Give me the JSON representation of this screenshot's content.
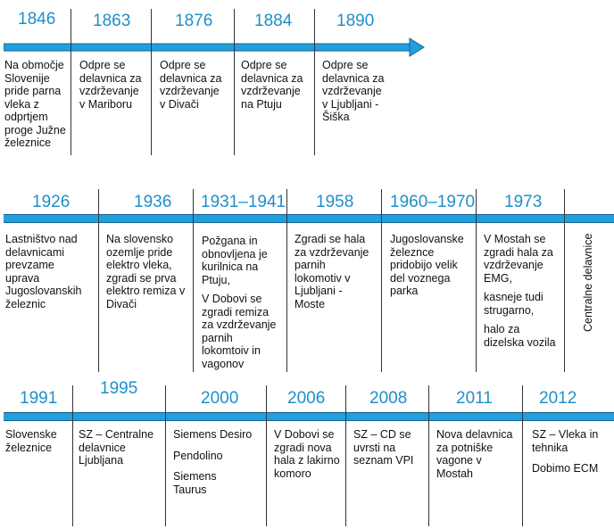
{
  "rows": [
    {
      "events": [
        {
          "year": "1846",
          "lines": [
            "Na območje",
            "Slovenije",
            "pride parna",
            "vleka z",
            "odprtjem",
            "proge Južne",
            "železnice"
          ]
        },
        {
          "year": "1863",
          "lines": [
            "Odpre se",
            "delavnica za",
            "vzdrževanje",
            "v Mariboru"
          ]
        },
        {
          "year": "1876",
          "lines": [
            "Odpre se",
            "delavnica za",
            "vzdrževanje",
            "v Divači"
          ]
        },
        {
          "year": "1884",
          "lines": [
            "Odpre se",
            "delavnica za",
            "vzdrževanje",
            "na Ptuju"
          ]
        },
        {
          "year": "1890",
          "lines": [
            "Odpre se",
            "delavnica za",
            "vzdrževanje",
            "v Ljubljani -",
            "Šiška"
          ]
        }
      ]
    },
    {
      "events": [
        {
          "year": "1926",
          "lines": [
            "Lastništvo nad",
            "delavnicami",
            "prevzame",
            "uprava",
            "Jugoslovanskih",
            "železnic"
          ]
        },
        {
          "year": "1936",
          "lines": [
            "Na slovensko",
            "ozemlje pride",
            "elektro vleka,",
            "zgradi se prva",
            "elektro remiza v",
            "Divači"
          ]
        },
        {
          "year": "1931–1941",
          "lines": [
            "Požgana in",
            "obnovljena je",
            "kurilnica na",
            "Ptuju,",
            "",
            "V Dobovi se",
            "zgradi remiza",
            "za vzdrževanje",
            "parnih",
            "lokomtoiv in",
            "vagonov"
          ]
        },
        {
          "year": "1958",
          "lines": [
            "Zgradi se hala",
            "za vzdrževanje",
            "parnih",
            "lokomotiv v",
            "Ljubljani -",
            "Moste"
          ]
        },
        {
          "year": "1960–1970",
          "lines": [
            "Jugoslovanske",
            "železnce",
            "pridobijo velik",
            "del voznega",
            "parka"
          ]
        },
        {
          "year": "1973",
          "lines": [
            "V Mostah se",
            "zgradi hala za",
            "vzdrževanje",
            "EMG,",
            "",
            "kasneje tudi",
            "strugarno,",
            "",
            "halo za",
            "dizelska vozila"
          ]
        }
      ],
      "vertical_label": "Centralne delavnice"
    },
    {
      "events": [
        {
          "year": "1991",
          "lines": [
            "Slovenske",
            "železnice"
          ]
        },
        {
          "year": "1995",
          "lines": [
            "SZ – Centralne",
            "delavnice",
            "Ljubljana"
          ]
        },
        {
          "year": "2000",
          "lines": [
            "Siemens Desiro",
            "",
            "Pendolino",
            "",
            "Siemens",
            "Taurus"
          ]
        },
        {
          "year": "2006",
          "lines": [
            "V Dobovi se",
            "zgradi nova",
            "hala z lakirno",
            "komoro"
          ]
        },
        {
          "year": "2008",
          "lines": [
            "SZ – CD se",
            "uvrsti na",
            "seznam VPI"
          ]
        },
        {
          "year": "2011",
          "lines": [
            "Nova delavnica",
            "za potniške",
            "vagone v",
            "Mostah"
          ]
        },
        {
          "year": "2012",
          "lines": [
            "SZ – Vleka in",
            "tehnika",
            "",
            "Dobimo ECM"
          ]
        }
      ]
    }
  ],
  "colors": {
    "year": "#1f8fc9",
    "band": "#1fa1e0"
  }
}
